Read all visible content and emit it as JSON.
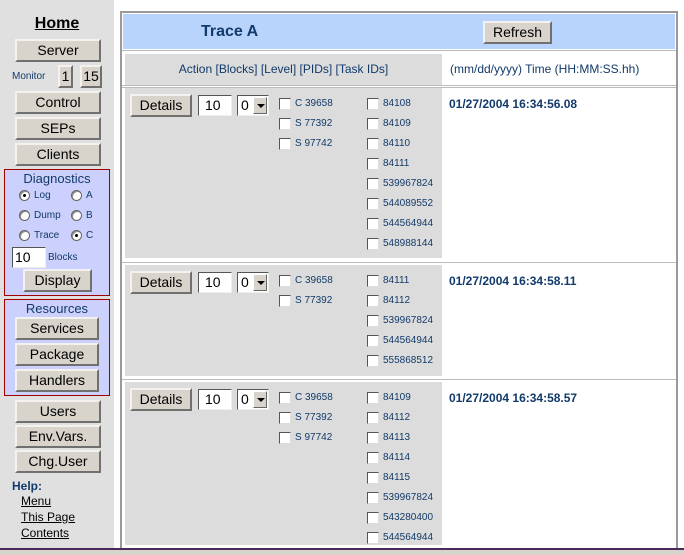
{
  "sidebar": {
    "home": "Home",
    "server": "Server",
    "monitor_label": "Monitor",
    "monitor_1": "1",
    "monitor_15": "15",
    "control": "Control",
    "seps": "SEPs",
    "clients": "Clients",
    "diagnostics": {
      "title": "Diagnostics",
      "options": [
        {
          "label": "Log",
          "selected": true
        },
        {
          "label": "A",
          "selected": false
        },
        {
          "label": "Dump",
          "selected": false
        },
        {
          "label": "B",
          "selected": false
        },
        {
          "label": "Trace",
          "selected": false
        },
        {
          "label": "C",
          "selected": true
        }
      ],
      "blocks_value": "10",
      "blocks_label": "Blocks",
      "display": "Display"
    },
    "resources": {
      "title": "Resources",
      "services": "Services",
      "package": "Package",
      "handlers": "Handlers"
    },
    "users": "Users",
    "env_vars": "Env.Vars.",
    "chg_user": "Chg.User",
    "help": {
      "label": "Help:",
      "menu": "Menu",
      "this_page": "This Page",
      "contents": "Contents"
    }
  },
  "main": {
    "title": "Trace A",
    "refresh": "Refresh",
    "col_action": "Action [Blocks] [Level] [PIDs] [Task IDs]",
    "col_time": "(mm/dd/yyyy) Time (HH:MM:SS.hh)",
    "traces": [
      {
        "details": "Details",
        "blocks": "10",
        "level": "0",
        "pids": [
          "C 39658",
          "S 77392",
          "S 97742"
        ],
        "tasks": [
          "84108",
          "84109",
          "84110",
          "84111",
          "539967824",
          "544089552",
          "544564944",
          "548988144"
        ],
        "time": "01/27/2004 16:34:56.08"
      },
      {
        "details": "Details",
        "blocks": "10",
        "level": "0",
        "pids": [
          "C 39658",
          "S 77392"
        ],
        "tasks": [
          "84111",
          "84112",
          "539967824",
          "544564944",
          "555868512"
        ],
        "time": "01/27/2004 16:34:58.11"
      },
      {
        "details": "Details",
        "blocks": "10",
        "level": "0",
        "pids": [
          "C 39658",
          "S 77392",
          "S 97742"
        ],
        "tasks": [
          "84109",
          "84112",
          "84113",
          "84114",
          "84115",
          "539967824",
          "543280400",
          "544564944"
        ],
        "time": "01/27/2004 16:34:58.57"
      }
    ]
  },
  "colors": {
    "header_bg": "#b8d4fc",
    "panel_bg": "#ccd0fc",
    "panel_border": "#a00000",
    "text": "#123a6a"
  }
}
